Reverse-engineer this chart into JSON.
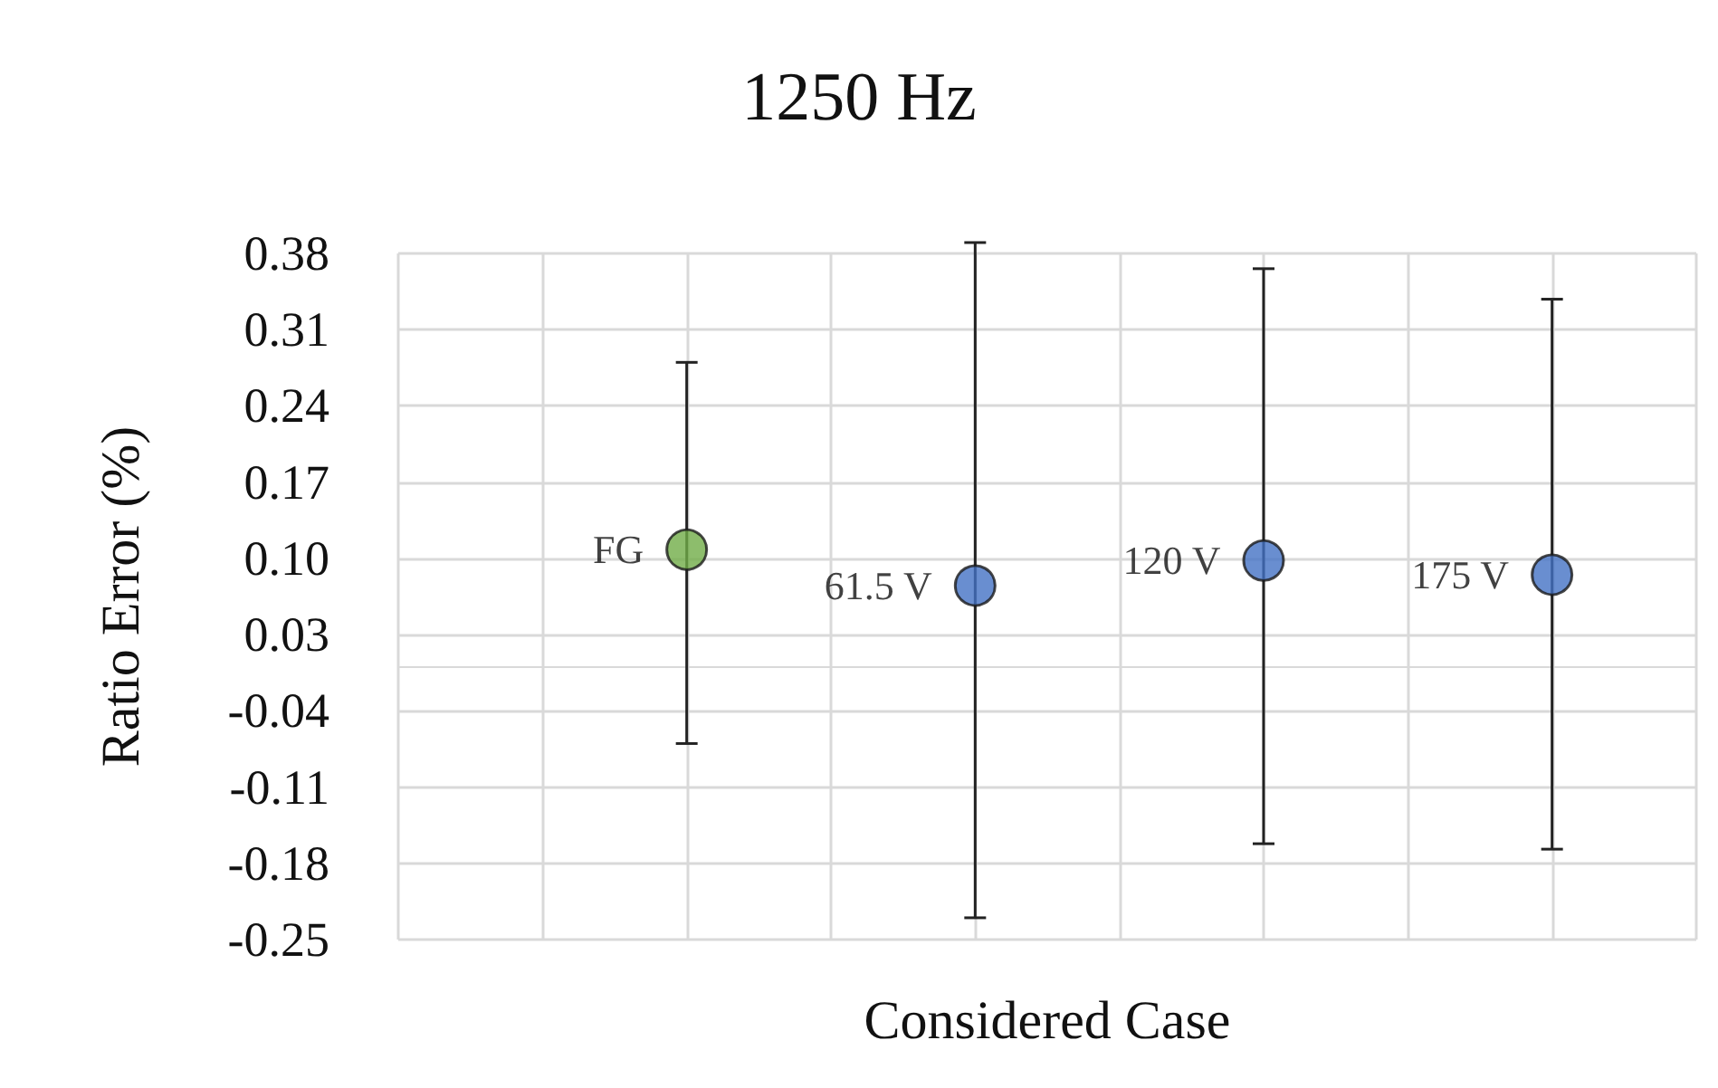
{
  "chart_data": {
    "type": "scatter",
    "title": "1250 Hz",
    "xlabel": "Considered Case",
    "ylabel": "Ratio Error (%)",
    "categories": [
      null,
      null,
      null,
      null,
      null,
      null,
      null,
      null,
      null,
      null
    ],
    "ylim": [
      -0.25,
      0.38
    ],
    "yticks": [
      -0.25,
      -0.18,
      -0.11,
      -0.04,
      0.03,
      {
        "value": 0.1,
        "label": "0.10"
      },
      0.17,
      0.24,
      0.31,
      0.38
    ],
    "series": [
      {
        "name": "FG",
        "color": "#70ad47",
        "values": [
          null,
          null,
          0.108,
          null,
          null,
          null,
          null,
          null,
          null,
          null
        ],
        "errors": [
          null,
          null,
          [
            -0.07,
            0.28
          ],
          null,
          null,
          null,
          null,
          null,
          null,
          null
        ]
      },
      {
        "name": "61.5 V",
        "color": "#4472c4",
        "values": [
          null,
          null,
          null,
          null,
          0.075,
          null,
          null,
          null,
          null,
          null
        ],
        "errors": [
          null,
          null,
          null,
          null,
          [
            -0.23,
            0.39
          ],
          null,
          null,
          null,
          null,
          null
        ]
      },
      {
        "name": "120 V",
        "color": "#4472c4",
        "values": [
          null,
          null,
          null,
          null,
          null,
          null,
          0.098,
          null,
          null,
          null
        ],
        "errors": [
          null,
          null,
          null,
          null,
          null,
          null,
          [
            -0.162,
            0.366
          ],
          null,
          null,
          null
        ]
      },
      {
        "name": "175 V",
        "color": "#4472c4",
        "values": [
          null,
          null,
          null,
          null,
          null,
          null,
          null,
          null,
          0.085,
          null
        ],
        "errors": [
          null,
          null,
          null,
          null,
          null,
          null,
          null,
          null,
          [
            -0.167,
            0.338
          ],
          null
        ]
      }
    ],
    "grid": true,
    "tick_labels": "y",
    "marker": "circle"
  }
}
